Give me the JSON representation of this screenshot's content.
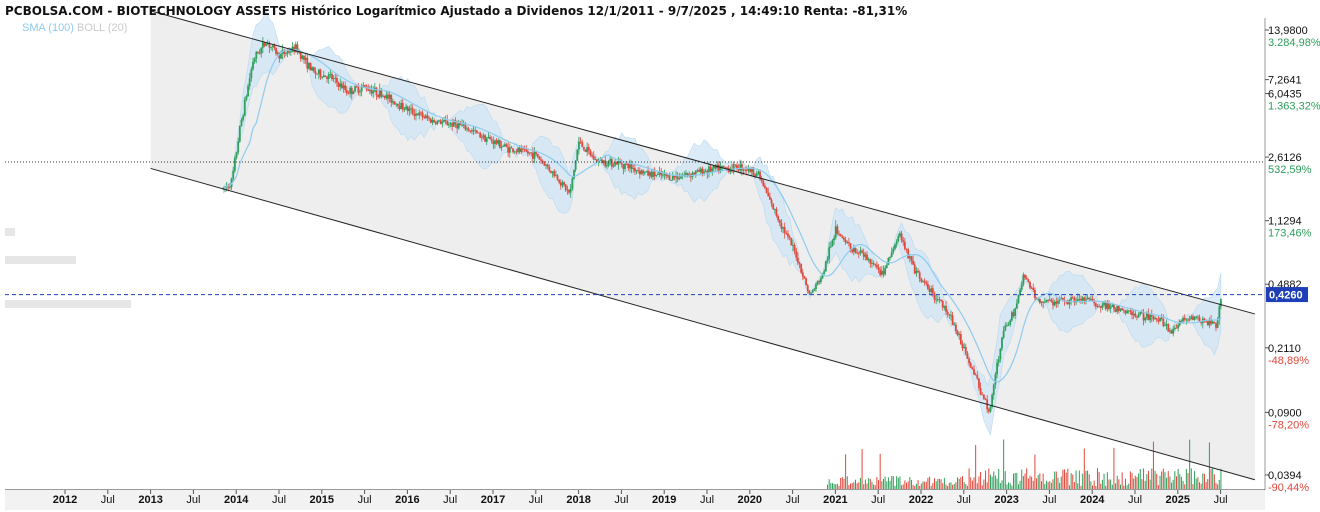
{
  "header": {
    "title": "PCBOLSA.COM - BIOTECHNOLOGY ASSETS Histórico Logarítmico Ajustado a Dividenos 12/1/2011 - 9/7/2025 , 14:49:10 Renta: -81,31%"
  },
  "legend": {
    "sma_label": "SMA (100)",
    "boll_label": "BOLL (20)"
  },
  "colors": {
    "up": "#2e9e5b",
    "down": "#e0483c",
    "channel_fill": "#eeeeee",
    "band_fill": "#cfe6f5",
    "sma_line": "#8ecbf0",
    "price_line": "#1f3fb8",
    "last_badge": "#1f3fb8"
  },
  "chart_data": {
    "type": "candlestick",
    "scale": "log",
    "x_ticks": [
      {
        "label": "2012",
        "t": 2012.0
      },
      {
        "label": "Jul",
        "t": 2012.5
      },
      {
        "label": "2013",
        "t": 2013.0
      },
      {
        "label": "Jul",
        "t": 2013.5
      },
      {
        "label": "2014",
        "t": 2014.0
      },
      {
        "label": "Jul",
        "t": 2014.5
      },
      {
        "label": "2015",
        "t": 2015.0
      },
      {
        "label": "Jul",
        "t": 2015.5
      },
      {
        "label": "2016",
        "t": 2016.0
      },
      {
        "label": "Jul",
        "t": 2016.5
      },
      {
        "label": "2017",
        "t": 2017.0
      },
      {
        "label": "Jul",
        "t": 2017.5
      },
      {
        "label": "2018",
        "t": 2018.0
      },
      {
        "label": "Jul",
        "t": 2018.5
      },
      {
        "label": "2019",
        "t": 2019.0
      },
      {
        "label": "Jul",
        "t": 2019.5
      },
      {
        "label": "2020",
        "t": 2020.0
      },
      {
        "label": "Jul",
        "t": 2020.5
      },
      {
        "label": "2021",
        "t": 2021.0
      },
      {
        "label": "Jul",
        "t": 2021.5
      },
      {
        "label": "2022",
        "t": 2022.0
      },
      {
        "label": "Jul",
        "t": 2022.5
      },
      {
        "label": "2023",
        "t": 2023.0
      },
      {
        "label": "Jul",
        "t": 2023.5
      },
      {
        "label": "2024",
        "t": 2024.0
      },
      {
        "label": "Jul",
        "t": 2024.5
      },
      {
        "label": "2025",
        "t": 2025.0
      },
      {
        "label": "Jul",
        "t": 2025.5
      }
    ],
    "y_levels": [
      {
        "price": 13.98,
        "label": "13,9800",
        "pct": "3.284,98%",
        "pct_color": "#2e9e5b"
      },
      {
        "price": 7.2641,
        "label": "7,2641",
        "pct": "",
        "pct_color": ""
      },
      {
        "price": 6.0435,
        "label": "6,0435",
        "pct": "1.363,32%",
        "pct_color": "#2e9e5b"
      },
      {
        "price": 2.6126,
        "label": "2,6126",
        "pct": "532,59%",
        "pct_color": "#2e9e5b"
      },
      {
        "price": 1.1294,
        "label": "1,1294",
        "pct": "173,46%",
        "pct_color": "#2e9e5b"
      },
      {
        "price": 0.4882,
        "label": "0,4882",
        "pct": "",
        "pct_color": ""
      },
      {
        "price": 0.211,
        "label": "0,2110",
        "pct": "-48,89%",
        "pct_color": "#e0483c"
      },
      {
        "price": 0.09,
        "label": "0,0900",
        "pct": "-78,20%",
        "pct_color": "#e0483c"
      },
      {
        "price": 0.0394,
        "label": "0,0394",
        "pct": "-90,44%",
        "pct_color": "#e0483c"
      }
    ],
    "last_price": {
      "price": 0.426,
      "label": "0,4260"
    },
    "reference_level": 2.45,
    "channel": {
      "upper": [
        {
          "t": 2013.0,
          "price": 18.0
        },
        {
          "t": 2025.9,
          "price": 0.33
        }
      ],
      "lower": [
        {
          "t": 2013.0,
          "price": 2.25
        },
        {
          "t": 2025.9,
          "price": 0.037
        }
      ]
    },
    "price_path": [
      {
        "t": 2013.85,
        "price": 1.7
      },
      {
        "t": 2013.95,
        "price": 1.9
      },
      {
        "t": 2014.05,
        "price": 4.0
      },
      {
        "t": 2014.2,
        "price": 9.5
      },
      {
        "t": 2014.35,
        "price": 12.0
      },
      {
        "t": 2014.5,
        "price": 10.0
      },
      {
        "t": 2014.7,
        "price": 11.0
      },
      {
        "t": 2014.9,
        "price": 8.0
      },
      {
        "t": 2015.1,
        "price": 7.5
      },
      {
        "t": 2015.3,
        "price": 6.2
      },
      {
        "t": 2015.5,
        "price": 6.6
      },
      {
        "t": 2015.7,
        "price": 6.0
      },
      {
        "t": 2016.0,
        "price": 4.9
      },
      {
        "t": 2016.3,
        "price": 4.2
      },
      {
        "t": 2016.6,
        "price": 4.0
      },
      {
        "t": 2016.9,
        "price": 3.4
      },
      {
        "t": 2017.2,
        "price": 2.9
      },
      {
        "t": 2017.5,
        "price": 2.7
      },
      {
        "t": 2017.75,
        "price": 2.0
      },
      {
        "t": 2017.9,
        "price": 1.6
      },
      {
        "t": 2018.0,
        "price": 3.2
      },
      {
        "t": 2018.2,
        "price": 2.5
      },
      {
        "t": 2018.5,
        "price": 2.4
      },
      {
        "t": 2018.8,
        "price": 2.1
      },
      {
        "t": 2019.1,
        "price": 2.0
      },
      {
        "t": 2019.5,
        "price": 2.2
      },
      {
        "t": 2019.9,
        "price": 2.3
      },
      {
        "t": 2020.1,
        "price": 2.1
      },
      {
        "t": 2020.25,
        "price": 1.4
      },
      {
        "t": 2020.4,
        "price": 1.0
      },
      {
        "t": 2020.55,
        "price": 0.7
      },
      {
        "t": 2020.7,
        "price": 0.42
      },
      {
        "t": 2020.85,
        "price": 0.55
      },
      {
        "t": 2021.0,
        "price": 1.0
      },
      {
        "t": 2021.15,
        "price": 0.8
      },
      {
        "t": 2021.35,
        "price": 0.7
      },
      {
        "t": 2021.55,
        "price": 0.55
      },
      {
        "t": 2021.75,
        "price": 0.95
      },
      {
        "t": 2021.95,
        "price": 0.55
      },
      {
        "t": 2022.1,
        "price": 0.45
      },
      {
        "t": 2022.3,
        "price": 0.35
      },
      {
        "t": 2022.5,
        "price": 0.21
      },
      {
        "t": 2022.7,
        "price": 0.12
      },
      {
        "t": 2022.8,
        "price": 0.09
      },
      {
        "t": 2022.95,
        "price": 0.25
      },
      {
        "t": 2023.1,
        "price": 0.35
      },
      {
        "t": 2023.2,
        "price": 0.55
      },
      {
        "t": 2023.35,
        "price": 0.4
      },
      {
        "t": 2023.6,
        "price": 0.38
      },
      {
        "t": 2023.9,
        "price": 0.4
      },
      {
        "t": 2024.2,
        "price": 0.36
      },
      {
        "t": 2024.5,
        "price": 0.33
      },
      {
        "t": 2024.8,
        "price": 0.31
      },
      {
        "t": 2024.9,
        "price": 0.26
      },
      {
        "t": 2025.1,
        "price": 0.32
      },
      {
        "t": 2025.3,
        "price": 0.3
      },
      {
        "t": 2025.45,
        "price": 0.29
      },
      {
        "t": 2025.52,
        "price": 0.426
      }
    ]
  }
}
